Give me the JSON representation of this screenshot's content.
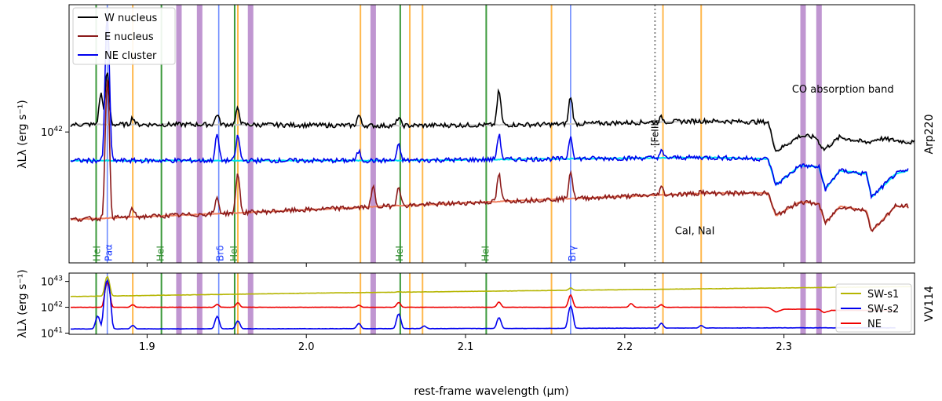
{
  "figure": {
    "xlabel": "rest-frame wavelength (μm)",
    "x_ticks": [
      "1.9",
      "2.0",
      "2.1",
      "2.2",
      "2.3"
    ],
    "xlim": [
      1.851,
      2.382
    ]
  },
  "chart_data": [
    {
      "type": "line",
      "panel": "top",
      "side_label": "Arp220",
      "ylabel": "λLλ (erg s⁻¹)",
      "y_scale": "log",
      "ylim": [
        3.6e+41,
        2.7e+42
      ],
      "y_tick": {
        "value": 1e+42,
        "label_base": "10",
        "label_exp": "42"
      },
      "legend": {
        "placement": "top-left",
        "entries": [
          {
            "name": "W nucleus",
            "color": "#000000"
          },
          {
            "name": "E nucleus",
            "color": "#8b1a1a"
          },
          {
            "name": "NE cluster",
            "color": "#0000ee"
          }
        ]
      },
      "series": [
        {
          "name": "W nucleus",
          "color": "#000000",
          "model_color": "#c8c8c8",
          "baseline": [
            [
              1.852,
              1.06e+42
            ],
            [
              1.95,
              1.06e+42
            ],
            [
              2.05,
              1.05e+42
            ],
            [
              2.15,
              1.06e+42
            ],
            [
              2.25,
              1.09e+42
            ],
            [
              2.29,
              1.08e+42
            ],
            [
              2.295,
              8.6e+41
            ],
            [
              2.31,
              9.7e+41
            ],
            [
              2.32,
              9.6e+41
            ],
            [
              2.325,
              8.7e+41
            ],
            [
              2.335,
              9.6e+41
            ],
            [
              2.352,
              9.2e+41
            ],
            [
              2.36,
              9.5e+41
            ],
            [
              2.382,
              9.2e+41
            ]
          ],
          "peaks": [
            [
              1.871,
              1.35e+42
            ],
            [
              1.875,
              1.6e+42
            ],
            [
              1.891,
              1.12e+42
            ],
            [
              1.944,
              1.15e+42
            ],
            [
              1.957,
              1.2e+42
            ],
            [
              2.033,
              1.14e+42
            ],
            [
              2.058,
              1.12e+42
            ],
            [
              2.121,
              1.38e+42
            ],
            [
              2.166,
              1.32e+42
            ],
            [
              2.223,
              1.12e+42
            ]
          ]
        },
        {
          "name": "NE cluster",
          "color": "#0000ee",
          "model_color": "#00e5ee",
          "baseline": [
            [
              1.852,
              8e+41
            ],
            [
              1.95,
              8e+41
            ],
            [
              2.05,
              8e+41
            ],
            [
              2.15,
              8.1e+41
            ],
            [
              2.25,
              8.2e+41
            ],
            [
              2.29,
              8.1e+41
            ],
            [
              2.295,
              6.6e+41
            ],
            [
              2.31,
              7.7e+41
            ],
            [
              2.322,
              7.6e+41
            ],
            [
              2.326,
              6.4e+41
            ],
            [
              2.335,
              7.4e+41
            ],
            [
              2.352,
              7.2e+41
            ],
            [
              2.355,
              6e+41
            ],
            [
              2.37,
              7.2e+41
            ],
            [
              2.378,
              7.4e+41
            ]
          ],
          "peaks": [
            [
              1.875,
              2.5e+42
            ],
            [
              1.944,
              9.8e+41
            ],
            [
              1.957,
              9.7e+41
            ],
            [
              2.033,
              8.6e+41
            ],
            [
              2.058,
              9e+41
            ],
            [
              2.121,
              9.8e+41
            ],
            [
              2.166,
              9.7e+41
            ],
            [
              2.223,
              8.6e+41
            ]
          ]
        },
        {
          "name": "E nucleus",
          "color": "#8b1a1a",
          "model_color": "#f08060",
          "baseline": [
            [
              1.852,
              5.05e+41
            ],
            [
              1.95,
              5.3e+41
            ],
            [
              2.05,
              5.6e+41
            ],
            [
              2.15,
              5.9e+41
            ],
            [
              2.25,
              6.2e+41
            ],
            [
              2.29,
              6.2e+41
            ],
            [
              2.295,
              5.2e+41
            ],
            [
              2.31,
              5.8e+41
            ],
            [
              2.322,
              5.7e+41
            ],
            [
              2.326,
              4.9e+41
            ],
            [
              2.335,
              5.6e+41
            ],
            [
              2.352,
              5.4e+41
            ],
            [
              2.355,
              4.6e+41
            ],
            [
              2.37,
              5.6e+41
            ],
            [
              2.378,
              5.6e+41
            ]
          ],
          "peaks": [
            [
              1.875,
              1.5e+42
            ],
            [
              1.891,
              5.5e+41
            ],
            [
              1.944,
              6e+41
            ],
            [
              1.957,
              7.3e+41
            ],
            [
              2.042,
              6.5e+41
            ],
            [
              2.058,
              6.6e+41
            ],
            [
              2.121,
              7.2e+41
            ],
            [
              2.166,
              7.4e+41
            ],
            [
              2.223,
              6.5e+41
            ],
            [
              2.248,
              6.3e+41
            ]
          ]
        }
      ],
      "line_labels": [
        {
          "text": "HeI",
          "x": 1.869,
          "color": "#2e8b2e"
        },
        {
          "text": "Paα",
          "x": 1.875,
          "color": "#1c3cff"
        },
        {
          "text": "HeI",
          "x": 1.909,
          "color": "#2e8b2e"
        },
        {
          "text": "Brδ",
          "x": 1.945,
          "color": "#1c3cff"
        },
        {
          "text": "HeI",
          "x": 1.955,
          "color": "#2e8b2e"
        },
        {
          "text": "HeI",
          "x": 2.059,
          "color": "#2e8b2e"
        },
        {
          "text": "HeI",
          "x": 2.113,
          "color": "#2e8b2e"
        },
        {
          "text": "Brγ",
          "x": 2.166,
          "color": "#1c3cff"
        },
        {
          "text": "[FeIII]",
          "x": 2.218,
          "color": "#000000"
        }
      ],
      "annotations": [
        {
          "text": "CO absorption band",
          "x": 2.337,
          "y": 1.36e+42
        },
        {
          "text": "CaI, NaI",
          "x": 2.244,
          "y": 4.5e+41
        }
      ]
    },
    {
      "type": "line",
      "panel": "bottom",
      "side_label": "VV114",
      "ylabel": "λLλ (erg s⁻¹)",
      "y_scale": "log",
      "ylim": [
        9e+40,
        2.1e+43
      ],
      "y_ticks": [
        {
          "value": 1e+41,
          "label_base": "10",
          "label_exp": "41"
        },
        {
          "value": 1e+42,
          "label_base": "10",
          "label_exp": "42"
        },
        {
          "value": 1e+43,
          "label_base": "10",
          "label_exp": "43"
        }
      ],
      "legend": {
        "placement": "right",
        "entries": [
          {
            "name": "SW-s1",
            "color": "#b5b500"
          },
          {
            "name": "SW-s2",
            "color": "#0000ee"
          },
          {
            "name": "NE",
            "color": "#ee0000"
          }
        ]
      },
      "series": [
        {
          "name": "SW-s1",
          "color": "#b5b500",
          "baseline": [
            [
              1.852,
              2.6e+42
            ],
            [
              2.0,
              3.5e+42
            ],
            [
              2.1,
              4.1e+42
            ],
            [
              2.2,
              4.8e+42
            ],
            [
              2.3,
              5.6e+42
            ],
            [
              2.38,
              6.3e+42
            ]
          ],
          "peaks": [
            [
              1.875,
              1.55e+43
            ],
            [
              1.944,
              3.1e+42
            ],
            [
              2.058,
              4e+42
            ],
            [
              2.166,
              5.6e+42
            ]
          ]
        },
        {
          "name": "NE",
          "color": "#ee0000",
          "baseline": [
            [
              1.852,
              1e+42
            ],
            [
              2.0,
              1e+42
            ],
            [
              2.1,
              1e+42
            ],
            [
              2.2,
              1e+42
            ],
            [
              2.29,
              1e+42
            ],
            [
              2.295,
              6.5e+41
            ],
            [
              2.3,
              8.4e+41
            ],
            [
              2.322,
              8.4e+41
            ],
            [
              2.325,
              6.2e+41
            ],
            [
              2.33,
              7.6e+41
            ],
            [
              2.37,
              7.6e+41
            ]
          ],
          "peaks": [
            [
              1.875,
              9e+42
            ],
            [
              1.891,
              1.25e+42
            ],
            [
              1.944,
              1.3e+42
            ],
            [
              1.957,
              1.5e+42
            ],
            [
              2.033,
              1.2e+42
            ],
            [
              2.058,
              1.55e+42
            ],
            [
              2.121,
              1.6e+42
            ],
            [
              2.166,
              3e+42
            ],
            [
              2.204,
              1.4e+42
            ],
            [
              2.223,
              1.25e+42
            ]
          ]
        },
        {
          "name": "SW-s2",
          "color": "#0000ee",
          "baseline": [
            [
              1.852,
              1.45e+41
            ],
            [
              2.0,
              1.48e+41
            ],
            [
              2.1,
              1.5e+41
            ],
            [
              2.2,
              1.55e+41
            ],
            [
              2.3,
              1.6e+41
            ],
            [
              2.37,
              1.6e+41
            ]
          ],
          "peaks": [
            [
              1.869,
              4.5e+41
            ],
            [
              1.875,
              1.1e+43
            ],
            [
              1.891,
              2e+41
            ],
            [
              1.944,
              4.5e+41
            ],
            [
              1.957,
              3e+41
            ],
            [
              2.033,
              2.4e+41
            ],
            [
              2.058,
              5.5e+41
            ],
            [
              2.074,
              1.9e+41
            ],
            [
              2.121,
              4e+41
            ],
            [
              2.166,
              1.1e+42
            ],
            [
              2.223,
              2.4e+41
            ],
            [
              2.248,
              2e+41
            ]
          ]
        }
      ]
    }
  ],
  "vertical_lines": {
    "green": [
      1.868,
      1.909,
      1.955,
      2.059,
      2.113
    ],
    "orange": [
      1.891,
      1.957,
      2.034,
      2.065,
      2.073,
      2.154,
      2.224,
      2.248
    ],
    "blue": [
      1.875,
      1.945,
      2.166
    ],
    "purple_bands": [
      1.92,
      1.933,
      1.965,
      2.042,
      2.312,
      2.322
    ],
    "dotted": [
      2.219
    ]
  },
  "colors": {
    "green": "#3c9a3c",
    "orange": "#ffb84d",
    "blue": "#6e8cff",
    "purple": "#b07cc6",
    "dotted": "#888888"
  }
}
